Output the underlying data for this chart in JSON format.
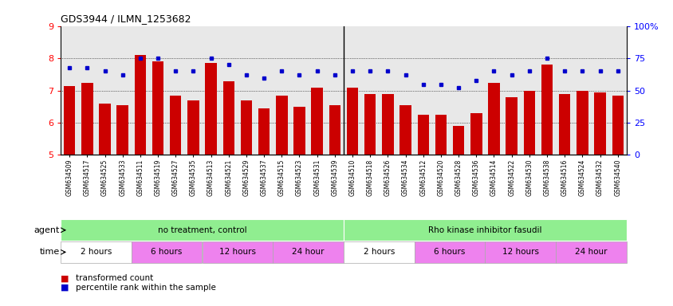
{
  "title": "GDS3944 / ILMN_1253682",
  "samples": [
    "GSM634509",
    "GSM634517",
    "GSM634525",
    "GSM634533",
    "GSM634511",
    "GSM634519",
    "GSM634527",
    "GSM634535",
    "GSM634513",
    "GSM634521",
    "GSM634529",
    "GSM634537",
    "GSM634515",
    "GSM634523",
    "GSM634531",
    "GSM634539",
    "GSM634510",
    "GSM634518",
    "GSM634526",
    "GSM634534",
    "GSM634512",
    "GSM634520",
    "GSM634528",
    "GSM634536",
    "GSM634514",
    "GSM634522",
    "GSM634530",
    "GSM634538",
    "GSM634516",
    "GSM634524",
    "GSM634532",
    "GSM634540"
  ],
  "bar_values": [
    7.15,
    7.25,
    6.6,
    6.55,
    8.1,
    7.9,
    6.85,
    6.7,
    7.85,
    7.3,
    6.7,
    6.45,
    6.85,
    6.5,
    7.1,
    6.55,
    7.1,
    6.9,
    6.9,
    6.55,
    6.25,
    6.25,
    5.9,
    6.3,
    7.25,
    6.8,
    7.0,
    7.8,
    6.9,
    7.0,
    6.95,
    6.85
  ],
  "dot_values": [
    68,
    68,
    65,
    62,
    75,
    75,
    65,
    65,
    75,
    70,
    62,
    60,
    65,
    62,
    65,
    62,
    65,
    65,
    65,
    62,
    55,
    55,
    52,
    58,
    65,
    62,
    65,
    75,
    65,
    65,
    65,
    65
  ],
  "ylim": [
    5,
    9
  ],
  "yticks": [
    5,
    6,
    7,
    8,
    9
  ],
  "y2lim": [
    0,
    100
  ],
  "y2ticks": [
    0,
    25,
    50,
    75,
    100
  ],
  "y2ticklabels": [
    "0",
    "25",
    "50",
    "75",
    "100%"
  ],
  "bar_color": "#cc0000",
  "dot_color": "#0000cc",
  "plot_bg": "#e8e8e8",
  "agent_row": [
    {
      "label": "no treatment, control",
      "start": 0,
      "end": 16,
      "color": "#90ee90"
    },
    {
      "label": "Rho kinase inhibitor fasudil",
      "start": 16,
      "end": 32,
      "color": "#90ee90"
    }
  ],
  "time_row": [
    {
      "label": "2 hours",
      "start": 0,
      "end": 4,
      "color": "#ffffff"
    },
    {
      "label": "6 hours",
      "start": 4,
      "end": 8,
      "color": "#ee82ee"
    },
    {
      "label": "12 hours",
      "start": 8,
      "end": 12,
      "color": "#ee82ee"
    },
    {
      "label": "24 hour",
      "start": 12,
      "end": 16,
      "color": "#ee82ee"
    },
    {
      "label": "2 hours",
      "start": 16,
      "end": 20,
      "color": "#ffffff"
    },
    {
      "label": "6 hours",
      "start": 20,
      "end": 24,
      "color": "#ee82ee"
    },
    {
      "label": "12 hours",
      "start": 24,
      "end": 28,
      "color": "#ee82ee"
    },
    {
      "label": "24 hour",
      "start": 28,
      "end": 32,
      "color": "#ee82ee"
    }
  ],
  "legend_items": [
    {
      "label": "transformed count",
      "color": "#cc0000"
    },
    {
      "label": "percentile rank within the sample",
      "color": "#0000cc"
    }
  ],
  "grid_lines": [
    6,
    7,
    8
  ],
  "separator": 15.5
}
